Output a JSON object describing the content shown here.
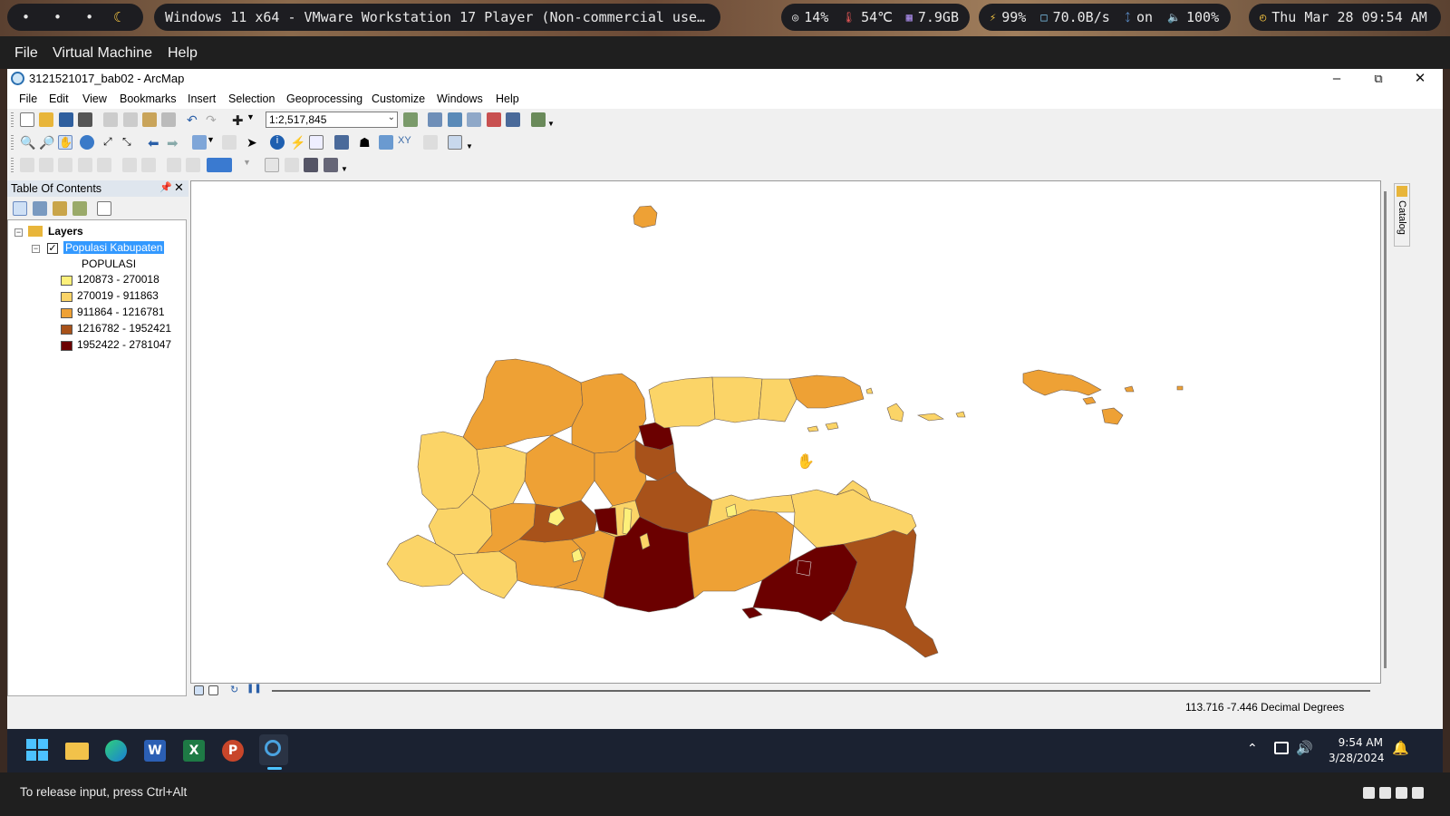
{
  "topbar": {
    "dots": [
      "•",
      "•",
      "•"
    ],
    "moon_icon": "moon-icon",
    "window_title": "Windows 11 x64 - VMware Workstation 17 Player (Non-commercial use…",
    "cpu": "14%",
    "temp": "54℃",
    "mem": "7.9GB",
    "battery": "99%",
    "net": "70.0B/s",
    "bluetooth": "on",
    "volume": "100%",
    "clock": "Thu Mar 28 09:54 AM"
  },
  "vm_menu": {
    "file": "File",
    "virtual_machine": "Virtual Machine",
    "help": "Help"
  },
  "arcmap": {
    "title": "3121521017_bab02 - ArcMap",
    "menu": [
      "File",
      "Edit",
      "View",
      "Bookmarks",
      "Insert",
      "Selection",
      "Geoprocessing",
      "Customize",
      "Windows",
      "Help"
    ],
    "scale": "1:2,517,845",
    "toc": {
      "title": "Table Of Contents",
      "layers_label": "Layers",
      "layer_name": "Populasi Kabupaten",
      "field": "POPULASI",
      "classes": [
        {
          "label": "120873 - 270018",
          "color": "#fdf07a"
        },
        {
          "label": "270019 - 911863",
          "color": "#fbd467"
        },
        {
          "label": "911864 - 1216781",
          "color": "#eea135"
        },
        {
          "label": "1216782 - 1952421",
          "color": "#a8521a"
        },
        {
          "label": "1952422 - 2781047",
          "color": "#6b0000"
        }
      ]
    },
    "catalog_tab": "Catalog",
    "coords": "113.716  -7.446 Decimal Degrees"
  },
  "taskbar": {
    "time": "9:54 AM",
    "date": "3/28/2024"
  },
  "vm_status": {
    "hint": "To release input, press Ctrl+Alt"
  }
}
